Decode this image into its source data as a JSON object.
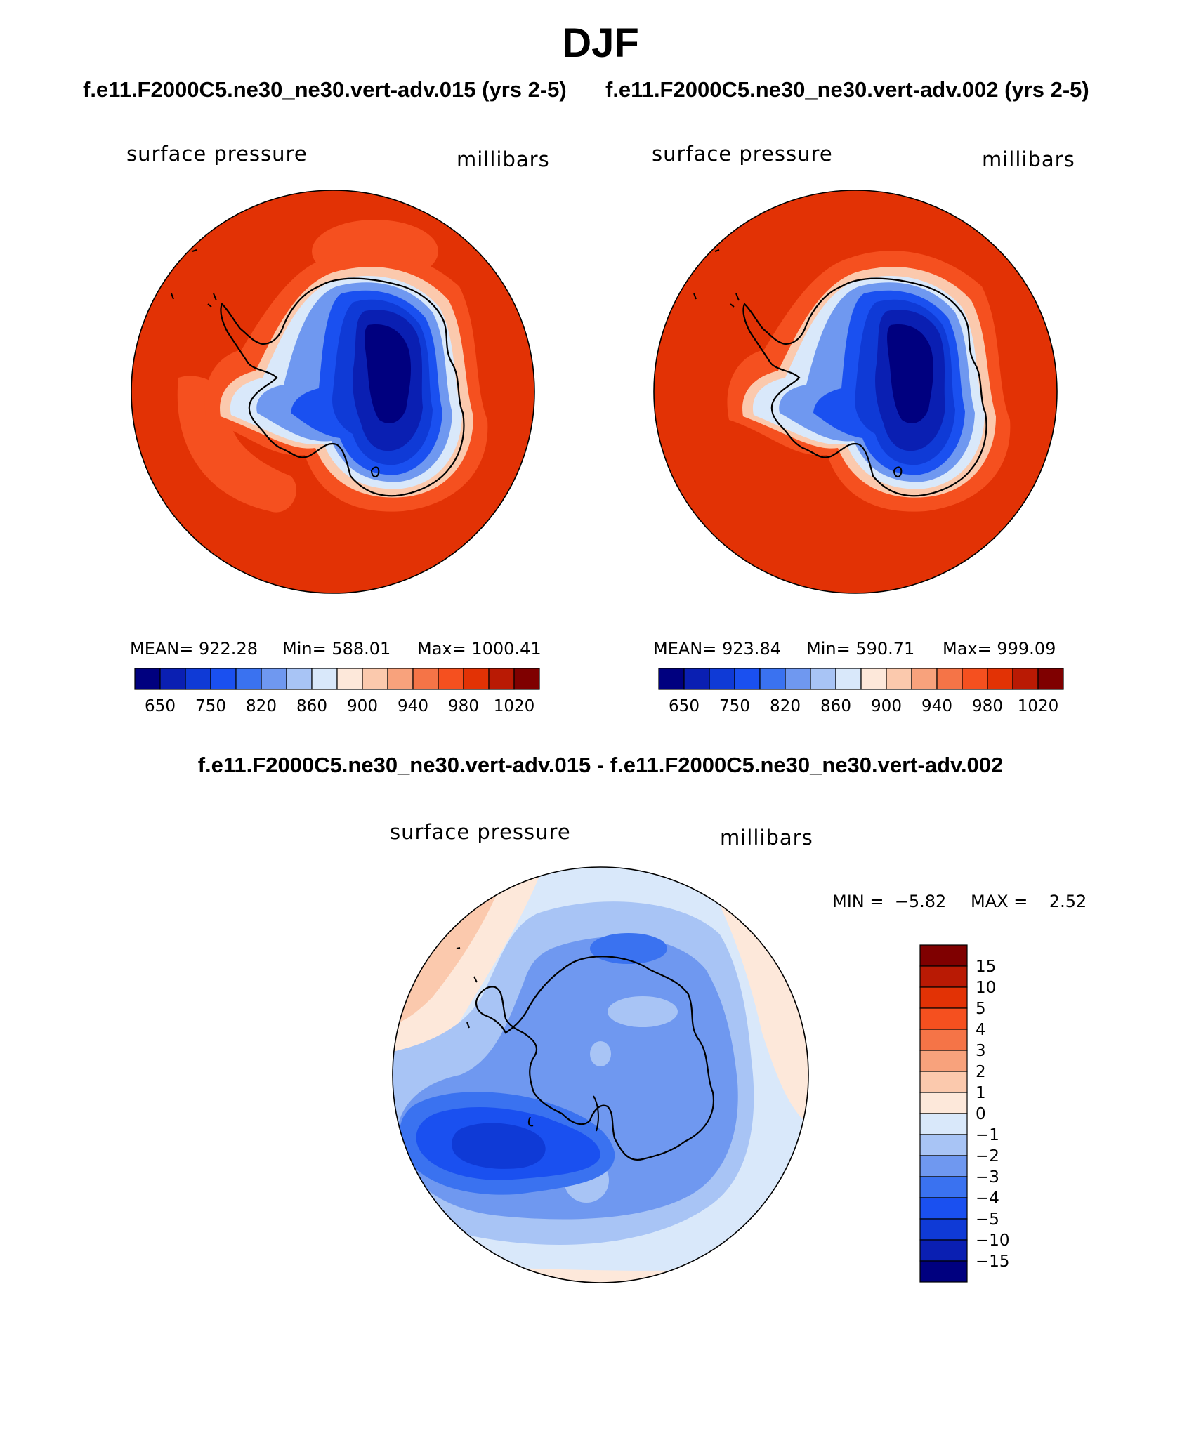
{
  "figure": {
    "season": "DJF",
    "panels": [
      {
        "case_title": "f.e11.F2000C5.ne30_ne30.vert-adv.015 (yrs 2-5)",
        "variable": "surface pressure",
        "units": "millibars",
        "mean_label": "MEAN=",
        "mean_value": "922.28",
        "min_label": "Min=",
        "min_value": "588.01",
        "max_label": "Max=",
        "max_value": "1000.41"
      },
      {
        "case_title": "f.e11.F2000C5.ne30_ne30.vert-adv.002 (yrs 2-5)",
        "variable": "surface pressure",
        "units": "millibars",
        "mean_label": "MEAN=",
        "mean_value": "923.84",
        "min_label": "Min=",
        "min_value": "590.71",
        "max_label": "Max=",
        "max_value": "999.09"
      }
    ],
    "diff_panel": {
      "title": "f.e11.F2000C5.ne30_ne30.vert-adv.015 - f.e11.F2000C5.ne30_ne30.vert-adv.002",
      "variable": "surface pressure",
      "units": "millibars",
      "min_label": "MIN =",
      "min_value": "−5.82",
      "max_label": "MAX =",
      "max_value": "2.52"
    },
    "colors": {
      "abs_scale": [
        "#00007f",
        "#0a1fb2",
        "#0f3ad6",
        "#1a50f0",
        "#3a72f0",
        "#6f98f0",
        "#a8c4f5",
        "#d9e8fa",
        "#fde8da",
        "#fbc9ad",
        "#f8a27c",
        "#f57447",
        "#f5501f",
        "#e23205",
        "#b91a04",
        "#7f0000"
      ],
      "diff_scale": [
        "#00007f",
        "#0a1fb2",
        "#0f3ad6",
        "#1a50f0",
        "#3a72f0",
        "#6f98f0",
        "#a8c4f5",
        "#d9e8fa",
        "#fde8da",
        "#fbc9ad",
        "#f8a27c",
        "#f57447",
        "#f5501f",
        "#e23205",
        "#b91a04",
        "#7f0000"
      ],
      "coastline": "#000000",
      "border": "#000000"
    }
  },
  "chart_data": [
    {
      "type": "heatmap",
      "projection": "polar stereographic (South Pole)",
      "title": "f.e11.F2000C5.ne30_ne30.vert-adv.015 (yrs 2-5)",
      "variable": "surface pressure",
      "units": "millibars",
      "contour_levels": [
        650,
        700,
        750,
        800,
        820,
        840,
        860,
        880,
        900,
        920,
        940,
        960,
        980,
        1000,
        1020
      ],
      "colorbar_tick_labels": [
        "650",
        "750",
        "820",
        "860",
        "900",
        "940",
        "980",
        "1020"
      ],
      "mean": 922.28,
      "min": 588.01,
      "max": 1000.41
    },
    {
      "type": "heatmap",
      "projection": "polar stereographic (South Pole)",
      "title": "f.e11.F2000C5.ne30_ne30.vert-adv.002 (yrs 2-5)",
      "variable": "surface pressure",
      "units": "millibars",
      "contour_levels": [
        650,
        700,
        750,
        800,
        820,
        840,
        860,
        880,
        900,
        920,
        940,
        960,
        980,
        1000,
        1020
      ],
      "colorbar_tick_labels": [
        "650",
        "750",
        "820",
        "860",
        "900",
        "940",
        "980",
        "1020"
      ],
      "mean": 923.84,
      "min": 590.71,
      "max": 999.09
    },
    {
      "type": "heatmap",
      "projection": "polar stereographic (South Pole)",
      "title": "f.e11.F2000C5.ne30_ne30.vert-adv.015 - f.e11.F2000C5.ne30_ne30.vert-adv.002",
      "variable": "surface pressure",
      "units": "millibars",
      "contour_levels": [
        -15,
        -10,
        -5,
        -4,
        -3,
        -2,
        -1,
        0,
        1,
        2,
        3,
        4,
        5,
        10,
        15
      ],
      "colorbar_tick_labels": [
        "15",
        "10",
        "5",
        "4",
        "3",
        "2",
        "1",
        "0",
        "−1",
        "−2",
        "−3",
        "−4",
        "−5",
        "−10",
        "−15"
      ],
      "min": -5.82,
      "max": 2.52
    }
  ]
}
